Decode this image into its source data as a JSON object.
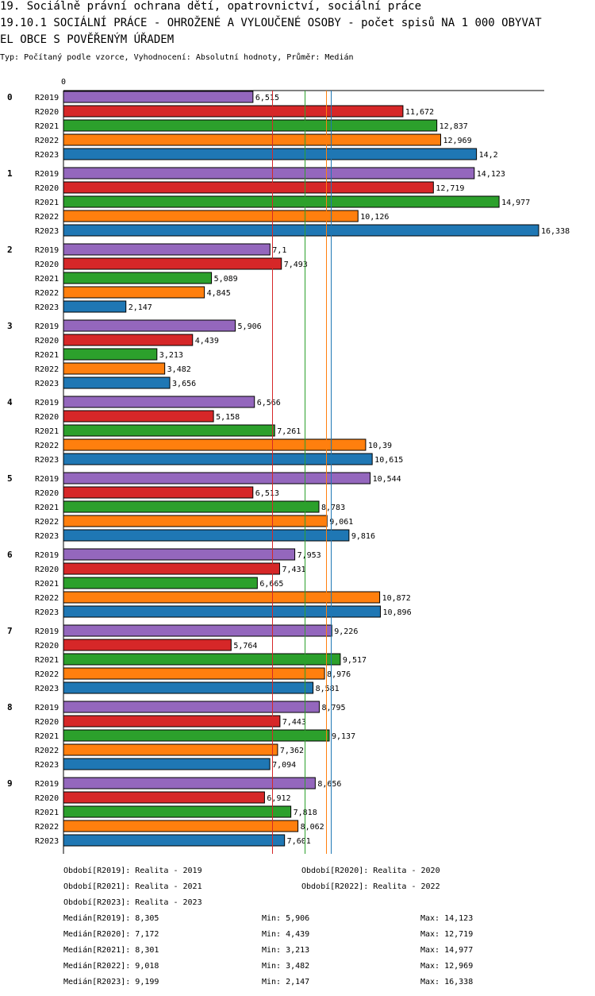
{
  "header": {
    "line1": "19. Sociálně právní ochrana dětí, opatrovnictví, sociální práce",
    "line2": "19.10.1 SOCIÁLNÍ PRÁCE - OHROŽENÉ A VYLOUČENÉ OSOBY - počet spisů NA 1 000 OBYVAT",
    "line3": "EL OBCE S POVĚŘENÝM ÚŘADEM",
    "subtitle": "Typ: Počítaný podle vzorce, Vyhodnocení: Absolutní hodnoty, Průměr: Medián"
  },
  "chart_data": {
    "type": "bar",
    "orientation": "horizontal",
    "axis_zero_label": "0",
    "xlim": [
      0,
      16.338
    ],
    "colors": {
      "R2019": "#9467bd",
      "R2020": "#d62728",
      "R2021": "#2ca02c",
      "R2022": "#ff7f0e",
      "R2023": "#1f77b4"
    },
    "groups": [
      {
        "label": "0",
        "bars": [
          {
            "series": "R2019",
            "value": 6.515,
            "label": "6,515"
          },
          {
            "series": "R2020",
            "value": 11.672,
            "label": "11,672"
          },
          {
            "series": "R2021",
            "value": 12.837,
            "label": "12,837"
          },
          {
            "series": "R2022",
            "value": 12.969,
            "label": "12,969"
          },
          {
            "series": "R2023",
            "value": 14.2,
            "label": "14,2"
          }
        ]
      },
      {
        "label": "1",
        "bars": [
          {
            "series": "R2019",
            "value": 14.123,
            "label": "14,123"
          },
          {
            "series": "R2020",
            "value": 12.719,
            "label": "12,719"
          },
          {
            "series": "R2021",
            "value": 14.977,
            "label": "14,977"
          },
          {
            "series": "R2022",
            "value": 10.126,
            "label": "10,126"
          },
          {
            "series": "R2023",
            "value": 16.338,
            "label": "16,338"
          }
        ]
      },
      {
        "label": "2",
        "bars": [
          {
            "series": "R2019",
            "value": 7.1,
            "label": "7,1"
          },
          {
            "series": "R2020",
            "value": 7.493,
            "label": "7,493"
          },
          {
            "series": "R2021",
            "value": 5.089,
            "label": "5,089"
          },
          {
            "series": "R2022",
            "value": 4.845,
            "label": "4,845"
          },
          {
            "series": "R2023",
            "value": 2.147,
            "label": "2,147"
          }
        ]
      },
      {
        "label": "3",
        "bars": [
          {
            "series": "R2019",
            "value": 5.906,
            "label": "5,906"
          },
          {
            "series": "R2020",
            "value": 4.439,
            "label": "4,439"
          },
          {
            "series": "R2021",
            "value": 3.213,
            "label": "3,213"
          },
          {
            "series": "R2022",
            "value": 3.482,
            "label": "3,482"
          },
          {
            "series": "R2023",
            "value": 3.656,
            "label": "3,656"
          }
        ]
      },
      {
        "label": "4",
        "bars": [
          {
            "series": "R2019",
            "value": 6.566,
            "label": "6,566"
          },
          {
            "series": "R2020",
            "value": 5.158,
            "label": "5,158"
          },
          {
            "series": "R2021",
            "value": 7.261,
            "label": "7,261"
          },
          {
            "series": "R2022",
            "value": 10.39,
            "label": "10,39"
          },
          {
            "series": "R2023",
            "value": 10.615,
            "label": "10,615"
          }
        ]
      },
      {
        "label": "5",
        "bars": [
          {
            "series": "R2019",
            "value": 10.544,
            "label": "10,544"
          },
          {
            "series": "R2020",
            "value": 6.513,
            "label": "6,513"
          },
          {
            "series": "R2021",
            "value": 8.783,
            "label": "8,783"
          },
          {
            "series": "R2022",
            "value": 9.061,
            "label": "9,061"
          },
          {
            "series": "R2023",
            "value": 9.816,
            "label": "9,816"
          }
        ]
      },
      {
        "label": "6",
        "bars": [
          {
            "series": "R2019",
            "value": 7.953,
            "label": "7,953"
          },
          {
            "series": "R2020",
            "value": 7.431,
            "label": "7,431"
          },
          {
            "series": "R2021",
            "value": 6.665,
            "label": "6,665"
          },
          {
            "series": "R2022",
            "value": 10.872,
            "label": "10,872"
          },
          {
            "series": "R2023",
            "value": 10.896,
            "label": "10,896"
          }
        ]
      },
      {
        "label": "7",
        "bars": [
          {
            "series": "R2019",
            "value": 9.226,
            "label": "9,226"
          },
          {
            "series": "R2020",
            "value": 5.764,
            "label": "5,764"
          },
          {
            "series": "R2021",
            "value": 9.517,
            "label": "9,517"
          },
          {
            "series": "R2022",
            "value": 8.976,
            "label": "8,976"
          },
          {
            "series": "R2023",
            "value": 8.581,
            "label": "8,581"
          }
        ]
      },
      {
        "label": "8",
        "bars": [
          {
            "series": "R2019",
            "value": 8.795,
            "label": "8,795"
          },
          {
            "series": "R2020",
            "value": 7.443,
            "label": "7,443"
          },
          {
            "series": "R2021",
            "value": 9.137,
            "label": "9,137"
          },
          {
            "series": "R2022",
            "value": 7.362,
            "label": "7,362"
          },
          {
            "series": "R2023",
            "value": 7.094,
            "label": "7,094"
          }
        ]
      },
      {
        "label": "9",
        "bars": [
          {
            "series": "R2019",
            "value": 8.656,
            "label": "8,656"
          },
          {
            "series": "R2020",
            "value": 6.912,
            "label": "6,912"
          },
          {
            "series": "R2021",
            "value": 7.818,
            "label": "7,818"
          },
          {
            "series": "R2022",
            "value": 8.062,
            "label": "8,062"
          },
          {
            "series": "R2023",
            "value": 7.601,
            "label": "7,601"
          }
        ]
      }
    ],
    "median_lines": [
      {
        "series": "R2019",
        "value": 8.305
      },
      {
        "series": "R2020",
        "value": 7.172
      },
      {
        "series": "R2021",
        "value": 8.301
      },
      {
        "series": "R2022",
        "value": 9.018
      },
      {
        "series": "R2023",
        "value": 9.199
      }
    ]
  },
  "legend": {
    "periods": [
      "Období[R2019]: Realita - 2019",
      "Období[R2020]: Realita - 2020",
      "Období[R2021]: Realita - 2021",
      "Období[R2022]: Realita - 2022",
      "Období[R2023]: Realita - 2023"
    ],
    "stats": [
      {
        "median": "Medián[R2019]: 8,305",
        "min": "Min: 5,906",
        "max": "Max: 14,123"
      },
      {
        "median": "Medián[R2020]: 7,172",
        "min": "Min: 4,439",
        "max": "Max: 12,719"
      },
      {
        "median": "Medián[R2021]: 8,301",
        "min": "Min: 3,213",
        "max": "Max: 14,977"
      },
      {
        "median": "Medián[R2022]: 9,018",
        "min": "Min: 3,482",
        "max": "Max: 12,969"
      },
      {
        "median": "Medián[R2023]: 9,199",
        "min": "Min: 2,147",
        "max": "Max: 16,338"
      }
    ]
  }
}
